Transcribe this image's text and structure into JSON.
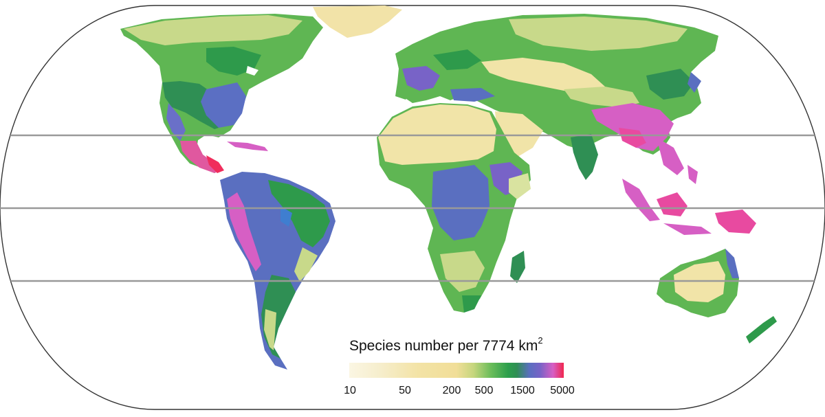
{
  "legend": {
    "title_main": "Species number per 7774 km",
    "title_sup": "2",
    "ticks": [
      "10",
      "50",
      "200",
      "500",
      "1500",
      "5000"
    ],
    "colors": [
      "#fbf6e3",
      "#f3e3a6",
      "#6bbd5a",
      "#2f8f54",
      "#5a6fc0",
      "#d65fc4",
      "#f0264e"
    ]
  },
  "map": {
    "projection": "Eckert IV (world, equal-area)",
    "reference_lines": [
      "Tropic of Cancer",
      "Equator",
      "Tropic of Capricorn"
    ]
  }
}
